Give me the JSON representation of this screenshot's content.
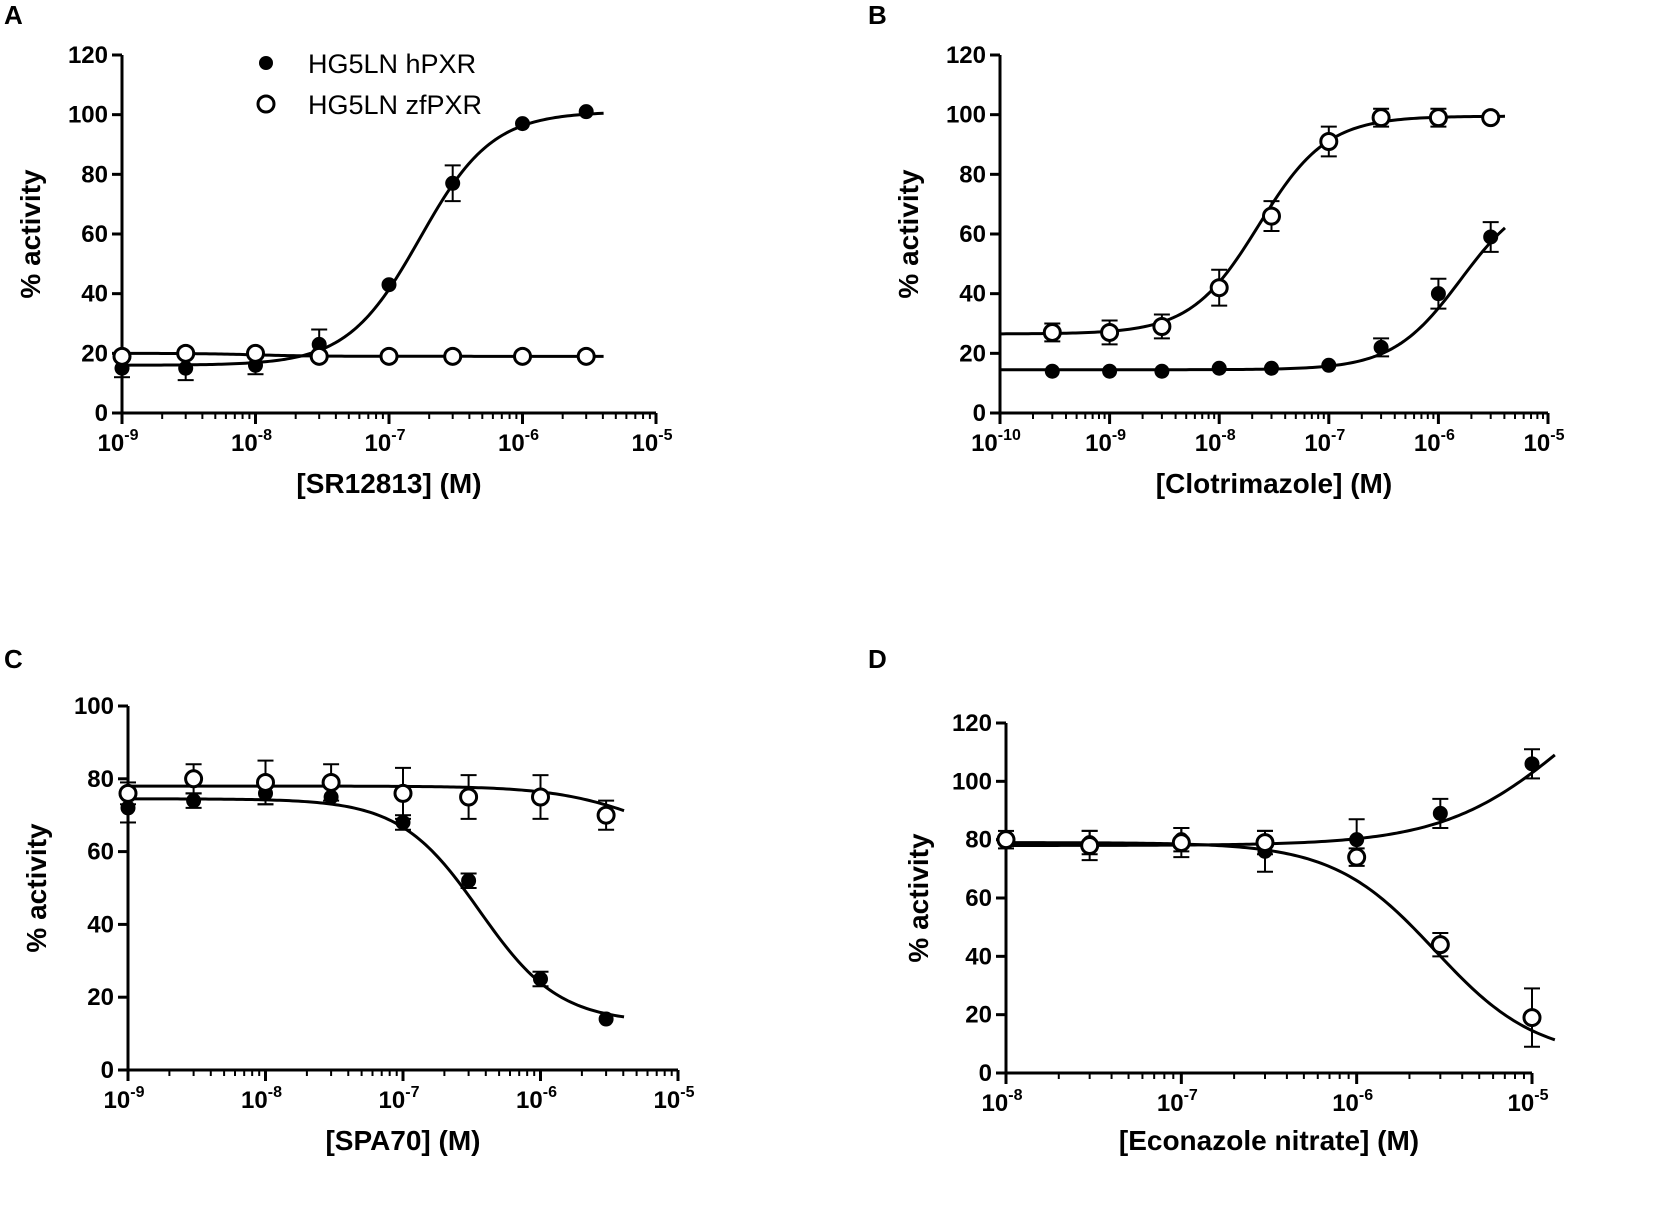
{
  "colors": {
    "ink": "#000000",
    "background": "#ffffff"
  },
  "legend": [
    {
      "name": "HG5LN hPXR",
      "marker": "filled-circle"
    },
    {
      "name": "HG5LN zfPXR",
      "marker": "open-circle"
    }
  ],
  "chart_data": [
    {
      "panel": "A",
      "type": "scatter",
      "xscale": "log",
      "xlabel": "[SR12813] (M)",
      "ylabel": "% activity",
      "xlim": [
        1e-09,
        1e-05
      ],
      "ylim": [
        0,
        120
      ],
      "x_ticks": [
        {
          "exp": "-9"
        },
        {
          "exp": "-8"
        },
        {
          "exp": "-7"
        },
        {
          "exp": "-6"
        },
        {
          "exp": "-5"
        }
      ],
      "y_ticks": [
        "0",
        "20",
        "40",
        "60",
        "80",
        "100",
        "120"
      ],
      "series": [
        {
          "name": "HG5LN hPXR",
          "marker": "filled",
          "x": [
            1e-09,
            3e-09,
            1e-08,
            3e-08,
            1e-07,
            3e-07,
            1e-06,
            3e-06
          ],
          "y": [
            15,
            15,
            16,
            23,
            43,
            77,
            97,
            101
          ],
          "err": [
            3,
            4,
            3,
            5,
            0,
            6,
            0,
            0
          ],
          "fit": {
            "bottom": 16,
            "top": 101,
            "ec50": 1.7e-07,
            "hill": 1.6
          }
        },
        {
          "name": "HG5LN zfPXR",
          "marker": "open",
          "x": [
            1e-09,
            3e-09,
            1e-08,
            3e-08,
            1e-07,
            3e-07,
            1e-06,
            3e-06
          ],
          "y": [
            19,
            20,
            20,
            19,
            19,
            19,
            19,
            19
          ],
          "err": [
            0,
            0,
            0,
            0,
            0,
            0,
            0,
            0
          ],
          "fit": {
            "bottom": 19,
            "top": 20,
            "ec50": 1e-08,
            "hill": -2
          }
        }
      ]
    },
    {
      "panel": "B",
      "type": "scatter",
      "xscale": "log",
      "xlabel": "[Clotrimazole] (M)",
      "ylabel": "% activity",
      "xlim": [
        1e-10,
        1e-05
      ],
      "ylim": [
        0,
        120
      ],
      "x_ticks": [
        {
          "exp": "-10"
        },
        {
          "exp": "-9"
        },
        {
          "exp": "-8"
        },
        {
          "exp": "-7"
        },
        {
          "exp": "-6"
        },
        {
          "exp": "-5"
        }
      ],
      "y_ticks": [
        "0",
        "20",
        "40",
        "60",
        "80",
        "100",
        "120"
      ],
      "series": [
        {
          "name": "HG5LN hPXR",
          "marker": "filled",
          "x": [
            3e-10,
            1e-09,
            3e-09,
            1e-08,
            3e-08,
            1e-07,
            3e-07,
            1e-06,
            3e-06
          ],
          "y": [
            14,
            14,
            14,
            15,
            15,
            16,
            22,
            40,
            59
          ],
          "err": [
            0,
            0,
            0,
            0,
            0,
            0,
            3,
            5,
            5
          ],
          "fit": {
            "bottom": 14.5,
            "top": 75,
            "ec50": 1.6e-06,
            "hill": 1.4
          }
        },
        {
          "name": "HG5LN zfPXR",
          "marker": "open",
          "x": [
            3e-10,
            1e-09,
            3e-09,
            1e-08,
            3e-08,
            1e-07,
            3e-07,
            1e-06,
            3e-06
          ],
          "y": [
            27,
            27,
            29,
            42,
            66,
            91,
            99,
            99,
            99
          ],
          "err": [
            3,
            4,
            4,
            6,
            5,
            5,
            3,
            3,
            0
          ],
          "fit": {
            "bottom": 26.5,
            "top": 99.5,
            "ec50": 2.3e-08,
            "hill": 1.4
          }
        }
      ]
    },
    {
      "panel": "C",
      "type": "scatter",
      "xscale": "log",
      "xlabel": "[SPA70] (M)",
      "ylabel": "% activity",
      "xlim": [
        1e-09,
        1e-05
      ],
      "ylim": [
        0,
        100
      ],
      "x_ticks": [
        {
          "exp": "-9"
        },
        {
          "exp": "-8"
        },
        {
          "exp": "-7"
        },
        {
          "exp": "-6"
        },
        {
          "exp": "-5"
        }
      ],
      "y_ticks": [
        "0",
        "20",
        "40",
        "60",
        "80",
        "100"
      ],
      "series": [
        {
          "name": "HG5LN hPXR",
          "marker": "filled",
          "x": [
            1e-09,
            3e-09,
            1e-08,
            3e-08,
            1e-07,
            3e-07,
            1e-06,
            3e-06
          ],
          "y": [
            72,
            74,
            76,
            75,
            68,
            52,
            25,
            14
          ],
          "err": [
            4,
            2,
            3,
            0,
            2,
            2,
            2,
            0
          ],
          "fit": {
            "bottom": 13,
            "top": 74.5,
            "ec50": 3.6e-07,
            "hill": -1.5
          }
        },
        {
          "name": "HG5LN zfPXR",
          "marker": "open",
          "x": [
            1e-09,
            3e-09,
            1e-08,
            3e-08,
            1e-07,
            3e-07,
            1e-06,
            3e-06
          ],
          "y": [
            76,
            80,
            79,
            79,
            76,
            75,
            75,
            70
          ],
          "err": [
            3,
            4,
            6,
            5,
            7,
            6,
            6,
            4
          ],
          "fit": {
            "bottom": 60,
            "top": 78,
            "ec50": 6e-06,
            "hill": -1.3
          }
        }
      ]
    },
    {
      "panel": "D",
      "type": "scatter",
      "xscale": "log",
      "xlabel": "[Econazole nitrate] (M)",
      "ylabel": "% activity",
      "xlim": [
        1e-08,
        1e-05
      ],
      "ylim": [
        0,
        120
      ],
      "x_ticks": [
        {
          "exp": "-8"
        },
        {
          "exp": "-7"
        },
        {
          "exp": "-6"
        },
        {
          "exp": "-5"
        }
      ],
      "y_ticks": [
        "0",
        "20",
        "40",
        "60",
        "80",
        "100",
        "120"
      ],
      "series": [
        {
          "name": "HG5LN hPXR",
          "marker": "filled",
          "x": [
            1e-08,
            3e-08,
            1e-07,
            3e-07,
            1e-06,
            3e-06,
            1e-05
          ],
          "y": [
            80,
            79,
            80,
            76,
            80,
            89,
            106
          ],
          "err": [
            3,
            4,
            4,
            7,
            7,
            5,
            5
          ],
          "fit": {
            "bottom": 78,
            "top": 150,
            "ec50": 1.7e-05,
            "hill": 1.2
          }
        },
        {
          "name": "HG5LN zfPXR",
          "marker": "open",
          "x": [
            1e-08,
            3e-08,
            1e-07,
            3e-07,
            1e-06,
            3e-06,
            1e-05
          ],
          "y": [
            80,
            78,
            79,
            79,
            74,
            44,
            19
          ],
          "err": [
            0,
            5,
            5,
            4,
            3,
            4,
            10
          ],
          "fit": {
            "bottom": 5,
            "top": 79,
            "ec50": 2.8e-06,
            "hill": -1.5
          }
        }
      ]
    }
  ]
}
